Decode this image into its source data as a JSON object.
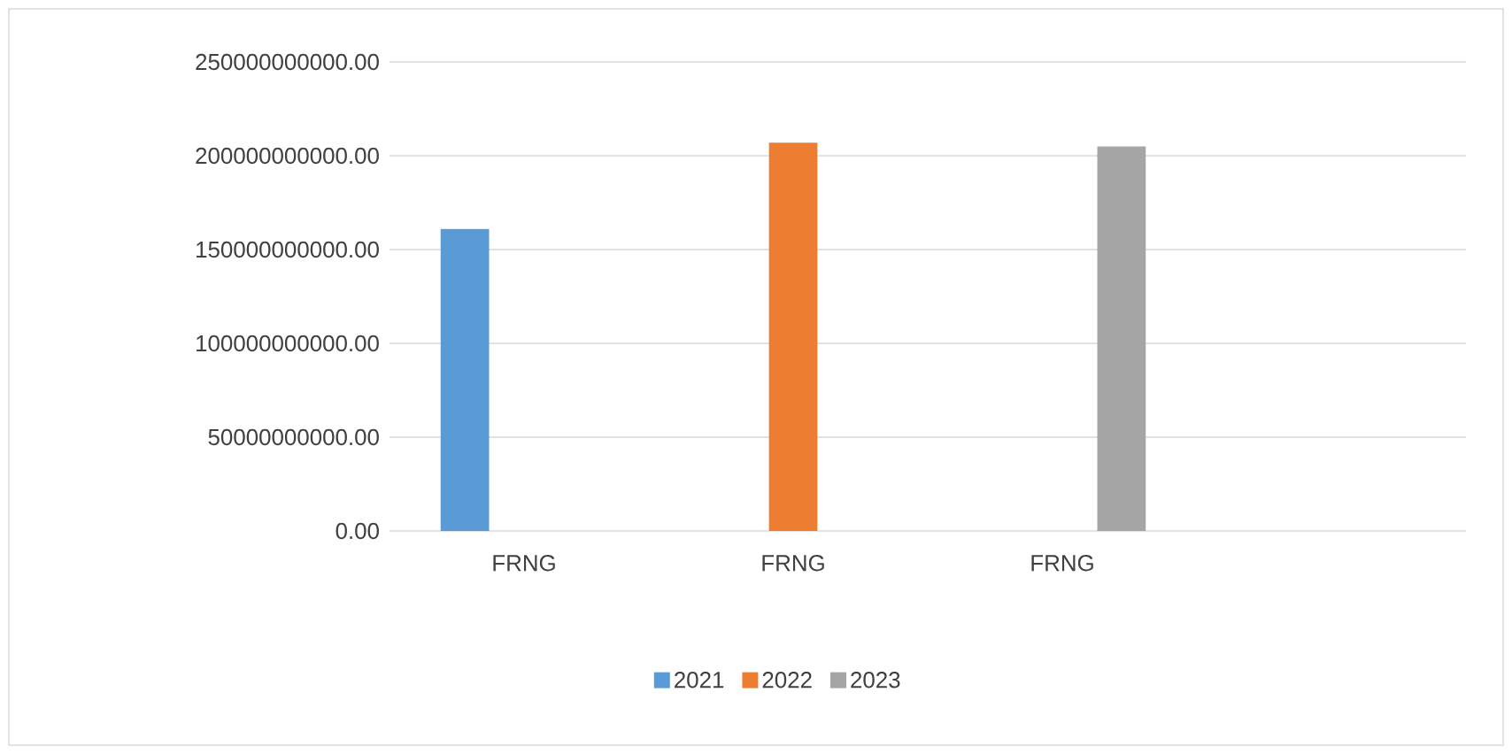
{
  "chart_data": {
    "type": "bar",
    "categories": [
      "FRNG",
      "FRNG",
      "FRNG",
      null
    ],
    "series": [
      {
        "name": "2021",
        "color": "#5b9bd5",
        "values": [
          161000000000,
          null,
          null,
          null
        ]
      },
      {
        "name": "2022",
        "color": "#ed7d31",
        "values": [
          null,
          207000000000,
          null,
          null
        ]
      },
      {
        "name": "2023",
        "color": "#a5a5a5",
        "values": [
          null,
          null,
          205000000000,
          null
        ]
      }
    ],
    "ylim": [
      0,
      250000000000
    ],
    "yticks": [
      {
        "value": 0,
        "label": "0.00"
      },
      {
        "value": 50000000000,
        "label": "50000000000.00"
      },
      {
        "value": 100000000000,
        "label": "100000000000.00"
      },
      {
        "value": 150000000000,
        "label": "150000000000.00"
      },
      {
        "value": 200000000000,
        "label": "200000000000.00"
      },
      {
        "value": 250000000000,
        "label": "250000000000.00"
      }
    ],
    "grid": "y",
    "legend": "bottom"
  }
}
